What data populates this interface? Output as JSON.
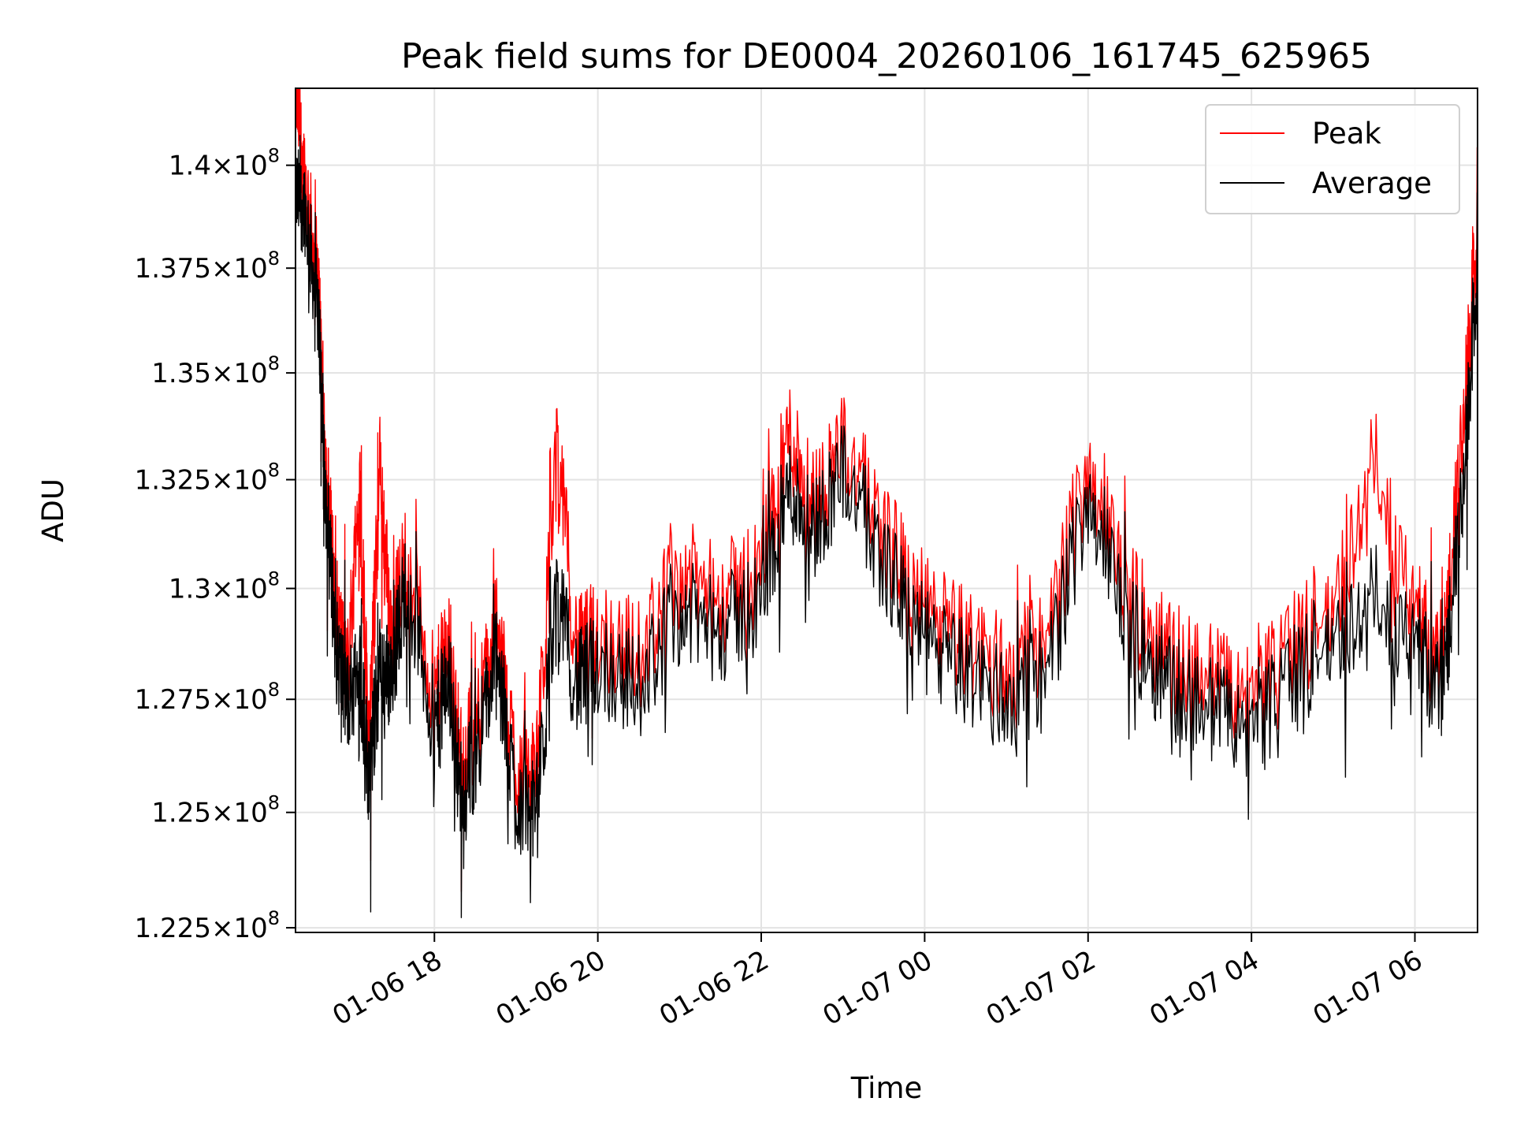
{
  "chart_data": {
    "type": "line",
    "title": "Peak field sums for DE0004_20260106_161745_625965",
    "xlabel": "Time",
    "ylabel": "ADU",
    "yscale": "log",
    "xlim": [
      "2026-01-06 16:18",
      "2026-01-07 06:46"
    ],
    "ylim": [
      122400000,
      141900000
    ],
    "grid": true,
    "legend": "top-right",
    "x_ticks": [
      {
        "value": "2026-01-06 18:00",
        "label": "01-06 18"
      },
      {
        "value": "2026-01-06 20:00",
        "label": "01-06 20"
      },
      {
        "value": "2026-01-06 22:00",
        "label": "01-06 22"
      },
      {
        "value": "2026-01-07 00:00",
        "label": "01-07 00"
      },
      {
        "value": "2026-01-07 02:00",
        "label": "01-07 02"
      },
      {
        "value": "2026-01-07 04:00",
        "label": "01-07 04"
      },
      {
        "value": "2026-01-07 06:00",
        "label": "01-07 06"
      }
    ],
    "y_ticks": [
      {
        "value": 122500000,
        "mantissa": "1.225",
        "exponent": "8"
      },
      {
        "value": 125000000,
        "mantissa": "1.25",
        "exponent": "8"
      },
      {
        "value": 127500000,
        "mantissa": "1.275",
        "exponent": "8"
      },
      {
        "value": 130000000,
        "mantissa": "1.3",
        "exponent": "8"
      },
      {
        "value": 132500000,
        "mantissa": "1.325",
        "exponent": "8"
      },
      {
        "value": 135000000,
        "mantissa": "1.35",
        "exponent": "8"
      },
      {
        "value": 137500000,
        "mantissa": "1.375",
        "exponent": "8"
      },
      {
        "value": 140000000,
        "mantissa": "1.4",
        "exponent": "8"
      }
    ],
    "times_sample": [
      "2026-01-06 16:18",
      "2026-01-07 06:46"
    ],
    "series": [
      {
        "name": "Peak",
        "color": "#ff0000",
        "x": [
          "2026-01-06 16:18",
          "2026-01-06 16:25",
          "2026-01-06 16:35",
          "2026-01-06 16:40",
          "2026-01-06 16:48",
          "2026-01-06 16:56",
          "2026-01-06 17:05",
          "2026-01-06 17:12",
          "2026-01-06 17:20",
          "2026-01-06 17:28",
          "2026-01-06 17:40",
          "2026-01-06 18:00",
          "2026-01-06 18:10",
          "2026-01-06 18:20",
          "2026-01-06 18:30",
          "2026-01-06 18:45",
          "2026-01-06 19:00",
          "2026-01-06 19:15",
          "2026-01-06 19:30",
          "2026-01-06 19:45",
          "2026-01-06 20:00",
          "2026-01-06 20:30",
          "2026-01-06 21:00",
          "2026-01-06 21:30",
          "2026-01-06 22:00",
          "2026-01-06 22:20",
          "2026-01-06 22:40",
          "2026-01-06 23:00",
          "2026-01-06 23:30",
          "2026-01-07 00:00",
          "2026-01-07 00:30",
          "2026-01-07 01:00",
          "2026-01-07 01:30",
          "2026-01-07 02:00",
          "2026-01-07 02:30",
          "2026-01-07 03:00",
          "2026-01-07 03:30",
          "2026-01-07 04:00",
          "2026-01-07 04:30",
          "2026-01-07 05:00",
          "2026-01-07 05:30",
          "2026-01-07 06:00",
          "2026-01-07 06:20",
          "2026-01-07 06:35",
          "2026-01-07 06:46"
        ],
        "values": [
          141900000,
          139700000,
          137000000,
          133000000,
          129500000,
          128000000,
          132400000,
          126500000,
          132800000,
          129000000,
          130900000,
          127500000,
          128800000,
          126000000,
          127000000,
          129000000,
          126000000,
          125800000,
          133300000,
          128500000,
          129000000,
          128500000,
          130400000,
          129700000,
          130500000,
          133600000,
          132000000,
          133400000,
          131300000,
          129500000,
          128800000,
          128200000,
          128700000,
          132900000,
          129800000,
          128500000,
          128000000,
          127500000,
          128600000,
          129500000,
          132900000,
          129500000,
          128200000,
          133500000,
          138600000
        ]
      },
      {
        "name": "Average",
        "color": "#000000",
        "x": [
          "2026-01-06 16:18",
          "2026-01-06 16:25",
          "2026-01-06 16:35",
          "2026-01-06 16:40",
          "2026-01-06 16:48",
          "2026-01-06 16:56",
          "2026-01-06 17:05",
          "2026-01-06 17:12",
          "2026-01-06 17:20",
          "2026-01-06 17:28",
          "2026-01-06 17:40",
          "2026-01-06 18:00",
          "2026-01-06 18:10",
          "2026-01-06 18:20",
          "2026-01-06 18:30",
          "2026-01-06 18:45",
          "2026-01-06 19:00",
          "2026-01-06 19:15",
          "2026-01-06 19:30",
          "2026-01-06 19:45",
          "2026-01-06 20:00",
          "2026-01-06 20:30",
          "2026-01-06 21:00",
          "2026-01-06 21:30",
          "2026-01-06 22:00",
          "2026-01-06 22:20",
          "2026-01-06 22:40",
          "2026-01-06 23:00",
          "2026-01-06 23:30",
          "2026-01-07 00:00",
          "2026-01-07 00:30",
          "2026-01-07 01:00",
          "2026-01-07 01:30",
          "2026-01-07 02:00",
          "2026-01-07 02:30",
          "2026-01-07 03:00",
          "2026-01-07 03:30",
          "2026-01-07 04:00",
          "2026-01-07 04:30",
          "2026-01-07 05:00",
          "2026-01-07 05:30",
          "2026-01-07 06:00",
          "2026-01-07 06:20",
          "2026-01-07 06:35",
          "2026-01-07 06:46"
        ],
        "values": [
          139500000,
          139200000,
          136500000,
          132500000,
          128800000,
          127600000,
          128500000,
          126000000,
          128400000,
          128200000,
          130500000,
          127000000,
          128200000,
          125500000,
          126500000,
          128500000,
          125500000,
          125200000,
          130000000,
          128000000,
          128500000,
          128000000,
          129700000,
          129200000,
          130000000,
          132500000,
          131600000,
          133000000,
          130800000,
          129000000,
          128300000,
          127700000,
          128200000,
          132400000,
          129300000,
          128000000,
          127500000,
          127000000,
          128100000,
          129000000,
          130000000,
          129000000,
          127800000,
          132200000,
          137800000
        ]
      }
    ]
  }
}
